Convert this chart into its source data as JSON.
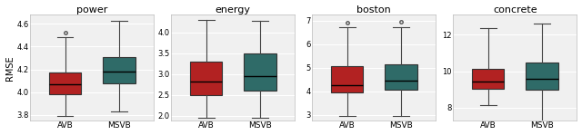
{
  "titles": [
    "power",
    "energy",
    "boston",
    "concrete"
  ],
  "ylabel": "RMSE",
  "xtick_labels": [
    "AVB",
    "MSVB"
  ],
  "avb_color": "#b22222",
  "msvb_color": "#2f6b68",
  "bg_color": "#f0f0f0",
  "grid_color": "#ffffff",
  "plots": [
    {
      "title": "power",
      "ylim": [
        3.75,
        4.68
      ],
      "yticks": [
        3.8,
        4.0,
        4.2,
        4.4,
        4.6
      ],
      "avb": {
        "whislo": 3.79,
        "q1": 3.98,
        "med": 4.07,
        "q3": 4.17,
        "whishi": 4.48,
        "fliers": [
          4.52
        ]
      },
      "msvb": {
        "whislo": 3.83,
        "q1": 4.08,
        "med": 4.18,
        "q3": 4.31,
        "whishi": 4.63,
        "fliers": []
      }
    },
    {
      "title": "energy",
      "ylim": [
        1.88,
        4.42
      ],
      "yticks": [
        2.0,
        2.5,
        3.0,
        3.5,
        4.0
      ],
      "avb": {
        "whislo": 1.95,
        "q1": 2.5,
        "med": 2.82,
        "q3": 3.3,
        "whishi": 4.3,
        "fliers": []
      },
      "msvb": {
        "whislo": 1.95,
        "q1": 2.6,
        "med": 2.95,
        "q3": 3.5,
        "whishi": 4.28,
        "fliers": []
      }
    },
    {
      "title": "boston",
      "ylim": [
        2.75,
        7.25
      ],
      "yticks": [
        3,
        4,
        5,
        6,
        7
      ],
      "avb": {
        "whislo": 2.95,
        "q1": 3.95,
        "med": 4.25,
        "q3": 5.05,
        "whishi": 6.72,
        "fliers": [
          6.92
        ]
      },
      "msvb": {
        "whislo": 2.95,
        "q1": 4.05,
        "med": 4.45,
        "q3": 5.15,
        "whishi": 6.72,
        "fliers": [
          6.97
        ]
      }
    },
    {
      "title": "concrete",
      "ylim": [
        7.3,
        13.1
      ],
      "yticks": [
        8,
        10,
        12
      ],
      "avb": {
        "whislo": 8.15,
        "q1": 9.05,
        "med": 9.45,
        "q3": 10.15,
        "whishi": 12.35,
        "fliers": []
      },
      "msvb": {
        "whislo": 7.0,
        "q1": 9.0,
        "med": 9.6,
        "q3": 10.5,
        "whishi": 12.6,
        "fliers": []
      }
    }
  ]
}
